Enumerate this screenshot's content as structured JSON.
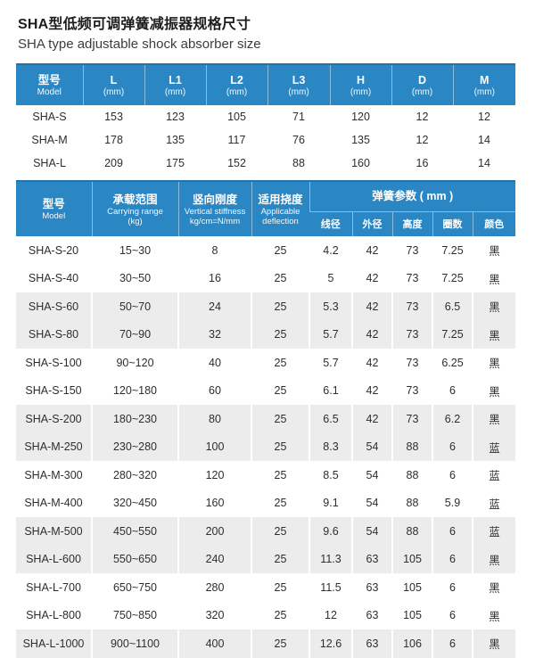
{
  "title_zh": "SHA型低频可调弹簧减振器规格尺寸",
  "title_en": "SHA type adjustable shock absorber size",
  "colors": {
    "header_blue": "#2b87c4",
    "header_blue_dark": "#2273aa",
    "stripe_gray": "#ececec",
    "text_dark": "#2e2e2e"
  },
  "size_table": {
    "header": [
      {
        "l1": "型号",
        "l2": "Model"
      },
      {
        "l1": "L",
        "l2": "(mm)"
      },
      {
        "l1": "L1",
        "l2": "(mm)"
      },
      {
        "l1": "L2",
        "l2": "(mm)"
      },
      {
        "l1": "L3",
        "l2": "(mm)"
      },
      {
        "l1": "H",
        "l2": "(mm)"
      },
      {
        "l1": "D",
        "l2": "(mm)"
      },
      {
        "l1": "M",
        "l2": "(mm)"
      }
    ],
    "rows": [
      [
        "SHA-S",
        "153",
        "123",
        "105",
        "71",
        "120",
        "12",
        "12"
      ],
      [
        "SHA-M",
        "178",
        "135",
        "117",
        "76",
        "135",
        "12",
        "14"
      ],
      [
        "SHA-L",
        "209",
        "175",
        "152",
        "88",
        "160",
        "16",
        "14"
      ]
    ]
  },
  "spec_table": {
    "header": {
      "model": {
        "zh": "型号",
        "en": "Model"
      },
      "carrying": {
        "zh": "承载范围",
        "en": "Carrying range",
        "unit": "(kg)"
      },
      "stiffness": {
        "zh": "竖向刚度",
        "en": "Vertical stiffness",
        "unit": "kg/cm=N/mm"
      },
      "deflection": {
        "zh": "适用挠度",
        "en": "Applicable deflection"
      },
      "spring_group": "弹簧参数 ( mm )",
      "spring_subs": [
        "线径",
        "外径",
        "高度",
        "圈数",
        "颜色"
      ]
    },
    "rows": [
      [
        "SHA-S-20",
        "15~30",
        "8",
        "25",
        "4.2",
        "42",
        "73",
        "7.25",
        "黑"
      ],
      [
        "SHA-S-40",
        "30~50",
        "16",
        "25",
        "5",
        "42",
        "73",
        "7.25",
        "黑"
      ],
      [
        "SHA-S-60",
        "50~70",
        "24",
        "25",
        "5.3",
        "42",
        "73",
        "6.5",
        "黑"
      ],
      [
        "SHA-S-80",
        "70~90",
        "32",
        "25",
        "5.7",
        "42",
        "73",
        "7.25",
        "黑"
      ],
      [
        "SHA-S-100",
        "90~120",
        "40",
        "25",
        "5.7",
        "42",
        "73",
        "6.25",
        "黑"
      ],
      [
        "SHA-S-150",
        "120~180",
        "60",
        "25",
        "6.1",
        "42",
        "73",
        "6",
        "黑"
      ],
      [
        "SHA-S-200",
        "180~230",
        "80",
        "25",
        "6.5",
        "42",
        "73",
        "6.2",
        "黑"
      ],
      [
        "SHA-M-250",
        "230~280",
        "100",
        "25",
        "8.3",
        "54",
        "88",
        "6",
        "蓝"
      ],
      [
        "SHA-M-300",
        "280~320",
        "120",
        "25",
        "8.5",
        "54",
        "88",
        "6",
        "蓝"
      ],
      [
        "SHA-M-400",
        "320~450",
        "160",
        "25",
        "9.1",
        "54",
        "88",
        "5.9",
        "蓝"
      ],
      [
        "SHA-M-500",
        "450~550",
        "200",
        "25",
        "9.6",
        "54",
        "88",
        "6",
        "蓝"
      ],
      [
        "SHA-L-600",
        "550~650",
        "240",
        "25",
        "11.3",
        "63",
        "105",
        "6",
        "黑"
      ],
      [
        "SHA-L-700",
        "650~750",
        "280",
        "25",
        "11.5",
        "63",
        "105",
        "6",
        "黑"
      ],
      [
        "SHA-L-800",
        "750~850",
        "320",
        "25",
        "12",
        "63",
        "105",
        "6",
        "黑"
      ],
      [
        "SHA-L-1000",
        "900~1100",
        "400",
        "25",
        "12.6",
        "63",
        "106",
        "6",
        "黑"
      ]
    ]
  }
}
